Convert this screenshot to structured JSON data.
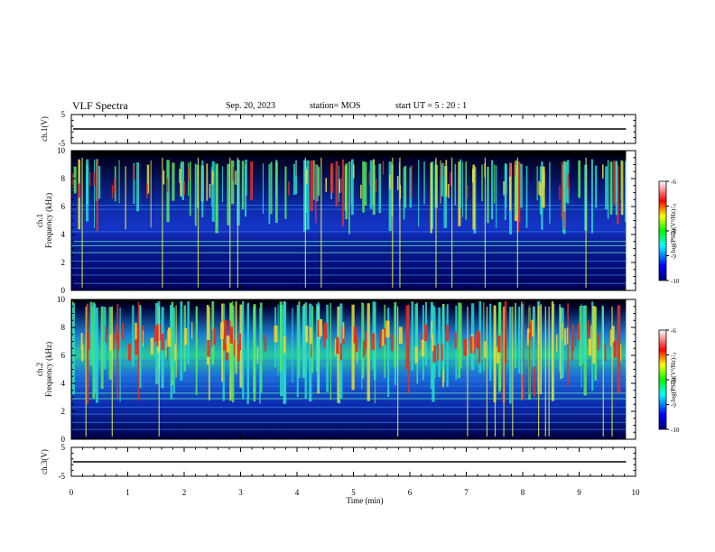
{
  "header": {
    "title": "VLF Spectra",
    "date": "Sep. 20, 2023",
    "station": "station= MOS",
    "start": "start UT =  5 : 20 : 1"
  },
  "chart_data": [
    {
      "type": "line",
      "panel": "ch1-waveform",
      "ylabel": "ch.1(V)",
      "ylim": [
        -5,
        5
      ],
      "yticks": [
        "5",
        "-5"
      ],
      "x": [
        0,
        10
      ],
      "values": [
        0,
        0
      ]
    },
    {
      "type": "heatmap",
      "panel": "ch1-spectrogram",
      "ylabel": "ch.1\nFrequency (kHz)",
      "ylim": [
        0,
        10
      ],
      "yticks": [
        "0",
        "2",
        "4",
        "6",
        "8",
        "10"
      ],
      "xlim": [
        0,
        9.83
      ],
      "colorbar": {
        "label": "log(PSD)(V²/Hz)",
        "range": [
          -10,
          -6
        ],
        "ticks": [
          "-6",
          "-7",
          "-8",
          "-9",
          "-10"
        ]
      }
    },
    {
      "type": "heatmap",
      "panel": "ch2-spectrogram",
      "ylabel": "ch.2\nFrequency (kHz)",
      "ylim": [
        0,
        10
      ],
      "yticks": [
        "0",
        "2",
        "4",
        "6",
        "8",
        "10"
      ],
      "xlim": [
        0,
        9.83
      ],
      "colorbar": {
        "label": "log(PSD)(V²/Hz)",
        "range": [
          -10,
          -6
        ],
        "ticks": [
          "-6",
          "-7",
          "-8",
          "-9",
          "-10"
        ]
      }
    },
    {
      "type": "line",
      "panel": "ch3-waveform",
      "ylabel": "ch.3(V)",
      "ylim": [
        -5,
        5
      ],
      "yticks": [
        "5",
        "-5"
      ],
      "x": [
        0,
        10
      ],
      "values": [
        0,
        0
      ]
    }
  ],
  "xaxis": {
    "label": "Time (min)",
    "ticks": [
      "0",
      "1",
      "2",
      "3",
      "4",
      "5",
      "6",
      "7",
      "8",
      "9",
      "10"
    ]
  },
  "labels": {
    "ch1_top": "ch.1",
    "ch2_top": "ch.2",
    "freq": "Frequency (kHz)"
  }
}
